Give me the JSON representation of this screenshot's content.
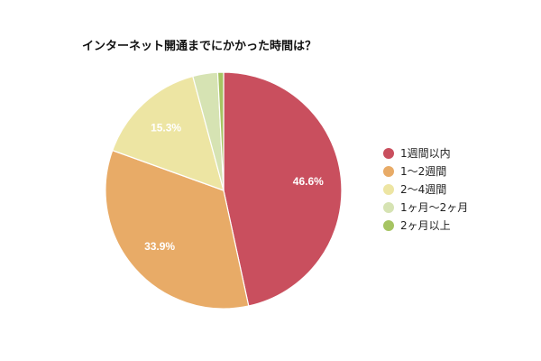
{
  "chart_data": {
    "type": "pie",
    "title": "インターネット開通までにかかった時間は？",
    "categories": [
      "1週間以内",
      "1〜2週間",
      "2〜4週間",
      "1ヶ月〜2ヶ月",
      "2ヶ月以上"
    ],
    "values": [
      46.6,
      33.9,
      15.3,
      3.4,
      0.8
    ],
    "data_labels": [
      "46.6%",
      "33.9%",
      "15.3%",
      "",
      ""
    ],
    "colors": [
      "#c94f5e",
      "#e8ab67",
      "#ede5a3",
      "#d6e3b3",
      "#a6c462"
    ],
    "legend_position": "right",
    "start_angle_deg": 0,
    "direction": "clockwise"
  }
}
